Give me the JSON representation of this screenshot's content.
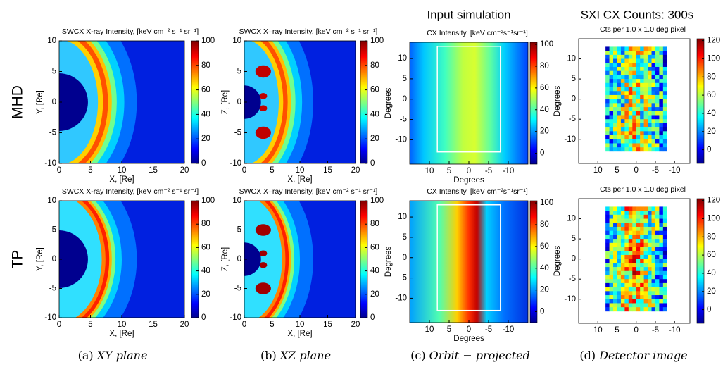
{
  "row_labels": [
    "MHD",
    "TP"
  ],
  "column_headers": [
    "Input simulation",
    "SXI CX Counts: 300s"
  ],
  "captions": [
    {
      "label": "(a)",
      "text": "XY plane"
    },
    {
      "label": "(b)",
      "text": "XZ plane"
    },
    {
      "label": "(c)",
      "text": "Orbit − projected"
    },
    {
      "label": "(d)",
      "text": "Detector image"
    }
  ],
  "panels": [
    {
      "title": "SWCX X-ray Intensity, [keV cm⁻² s⁻¹ sr⁻¹]",
      "xlabel": "X, [Re]",
      "ylabel": "Y, [Re]",
      "xlim": [
        0,
        20
      ],
      "ylim": [
        -10,
        10
      ],
      "xticks": [
        0,
        5,
        10,
        15,
        20
      ],
      "yticks": [
        -10,
        -5,
        0,
        5,
        10
      ],
      "clim": [
        0,
        100
      ],
      "cticks": [
        0,
        20,
        40,
        60,
        80,
        100
      ]
    },
    {
      "title": "SWCX X–ray Intensity, [keV cm⁻² s⁻¹ sr⁻¹]",
      "xlabel": "X, [Re]",
      "ylabel": "Z, [Re]",
      "xlim": [
        0,
        20
      ],
      "ylim": [
        -10,
        10
      ],
      "xticks": [
        0,
        5,
        10,
        15,
        20
      ],
      "yticks": [
        -10,
        -5,
        0,
        5,
        10
      ],
      "clim": [
        0,
        100
      ],
      "cticks": [
        0,
        20,
        40,
        60,
        80,
        100
      ]
    },
    {
      "title": "CX Intensity, [keV cm⁻²s⁻¹sr⁻¹]",
      "xlabel": "Degrees",
      "ylabel": "Degrees",
      "xlim": [
        15,
        -15
      ],
      "ylim": [
        -16,
        14
      ],
      "xticks": [
        10,
        5,
        0,
        -5,
        -10
      ],
      "yticks": [
        -10,
        -5,
        0,
        5,
        10
      ],
      "clim": [
        -10,
        102
      ],
      "cticks": [
        0,
        20,
        40,
        60,
        80,
        100
      ]
    },
    {
      "title": "Cts per 1.0 x 1.0 deg pixel",
      "ylabel": "Degrees",
      "xlim": [
        15,
        -14
      ],
      "ylim": [
        -16,
        15
      ],
      "xticks": [
        10,
        5,
        0,
        -5,
        -10
      ],
      "yticks": [
        -10,
        -5,
        0,
        5,
        10
      ],
      "clim": [
        -15,
        122
      ],
      "cticks": [
        0,
        20,
        40,
        60,
        80,
        100,
        120
      ]
    },
    {
      "title": "SWCX X-ray Intensity, [keV cm⁻² s⁻¹ sr⁻¹]",
      "xlabel": "X, [Re]",
      "ylabel": "Y, [Re]",
      "xlim": [
        0,
        20
      ],
      "ylim": [
        -10,
        10
      ],
      "xticks": [
        0,
        5,
        10,
        15,
        20
      ],
      "yticks": [
        -10,
        -5,
        0,
        5,
        10
      ],
      "clim": [
        0,
        100
      ],
      "cticks": [
        0,
        20,
        40,
        60,
        80,
        100
      ]
    },
    {
      "title": "SWCX X–ray Intensity, [keV cm⁻² s⁻¹ sr⁻¹]",
      "xlabel": "X, [Re]",
      "ylabel": "Z, [Re]",
      "xlim": [
        0,
        20
      ],
      "ylim": [
        -10,
        10
      ],
      "xticks": [
        0,
        5,
        10,
        15,
        20
      ],
      "yticks": [
        -10,
        -5,
        0,
        5,
        10
      ],
      "clim": [
        0,
        100
      ],
      "cticks": [
        0,
        20,
        40,
        60,
        80,
        100
      ]
    },
    {
      "title": "CX Intensity, [keV cm⁻²s⁻¹sr⁻¹]",
      "xlabel": "Degrees",
      "ylabel": "Degrees",
      "xlim": [
        15,
        -15
      ],
      "ylim": [
        -16,
        14
      ],
      "xticks": [
        10,
        5,
        0,
        -5,
        -10
      ],
      "yticks": [
        -10,
        -5,
        0,
        5,
        10
      ],
      "clim": [
        -10,
        102
      ],
      "cticks": [
        0,
        20,
        40,
        60,
        80,
        100
      ]
    },
    {
      "title": "Cts per 1.0 x 1.0 deg pixel",
      "ylabel": "Degrees",
      "xlim": [
        15,
        -14
      ],
      "ylim": [
        -16,
        15
      ],
      "xticks": [
        10,
        5,
        0,
        -5,
        -10
      ],
      "yticks": [
        -10,
        -5,
        0,
        5,
        10
      ],
      "clim": [
        -15,
        122
      ],
      "cticks": [
        0,
        20,
        40,
        60,
        80,
        100,
        120
      ]
    }
  ]
}
